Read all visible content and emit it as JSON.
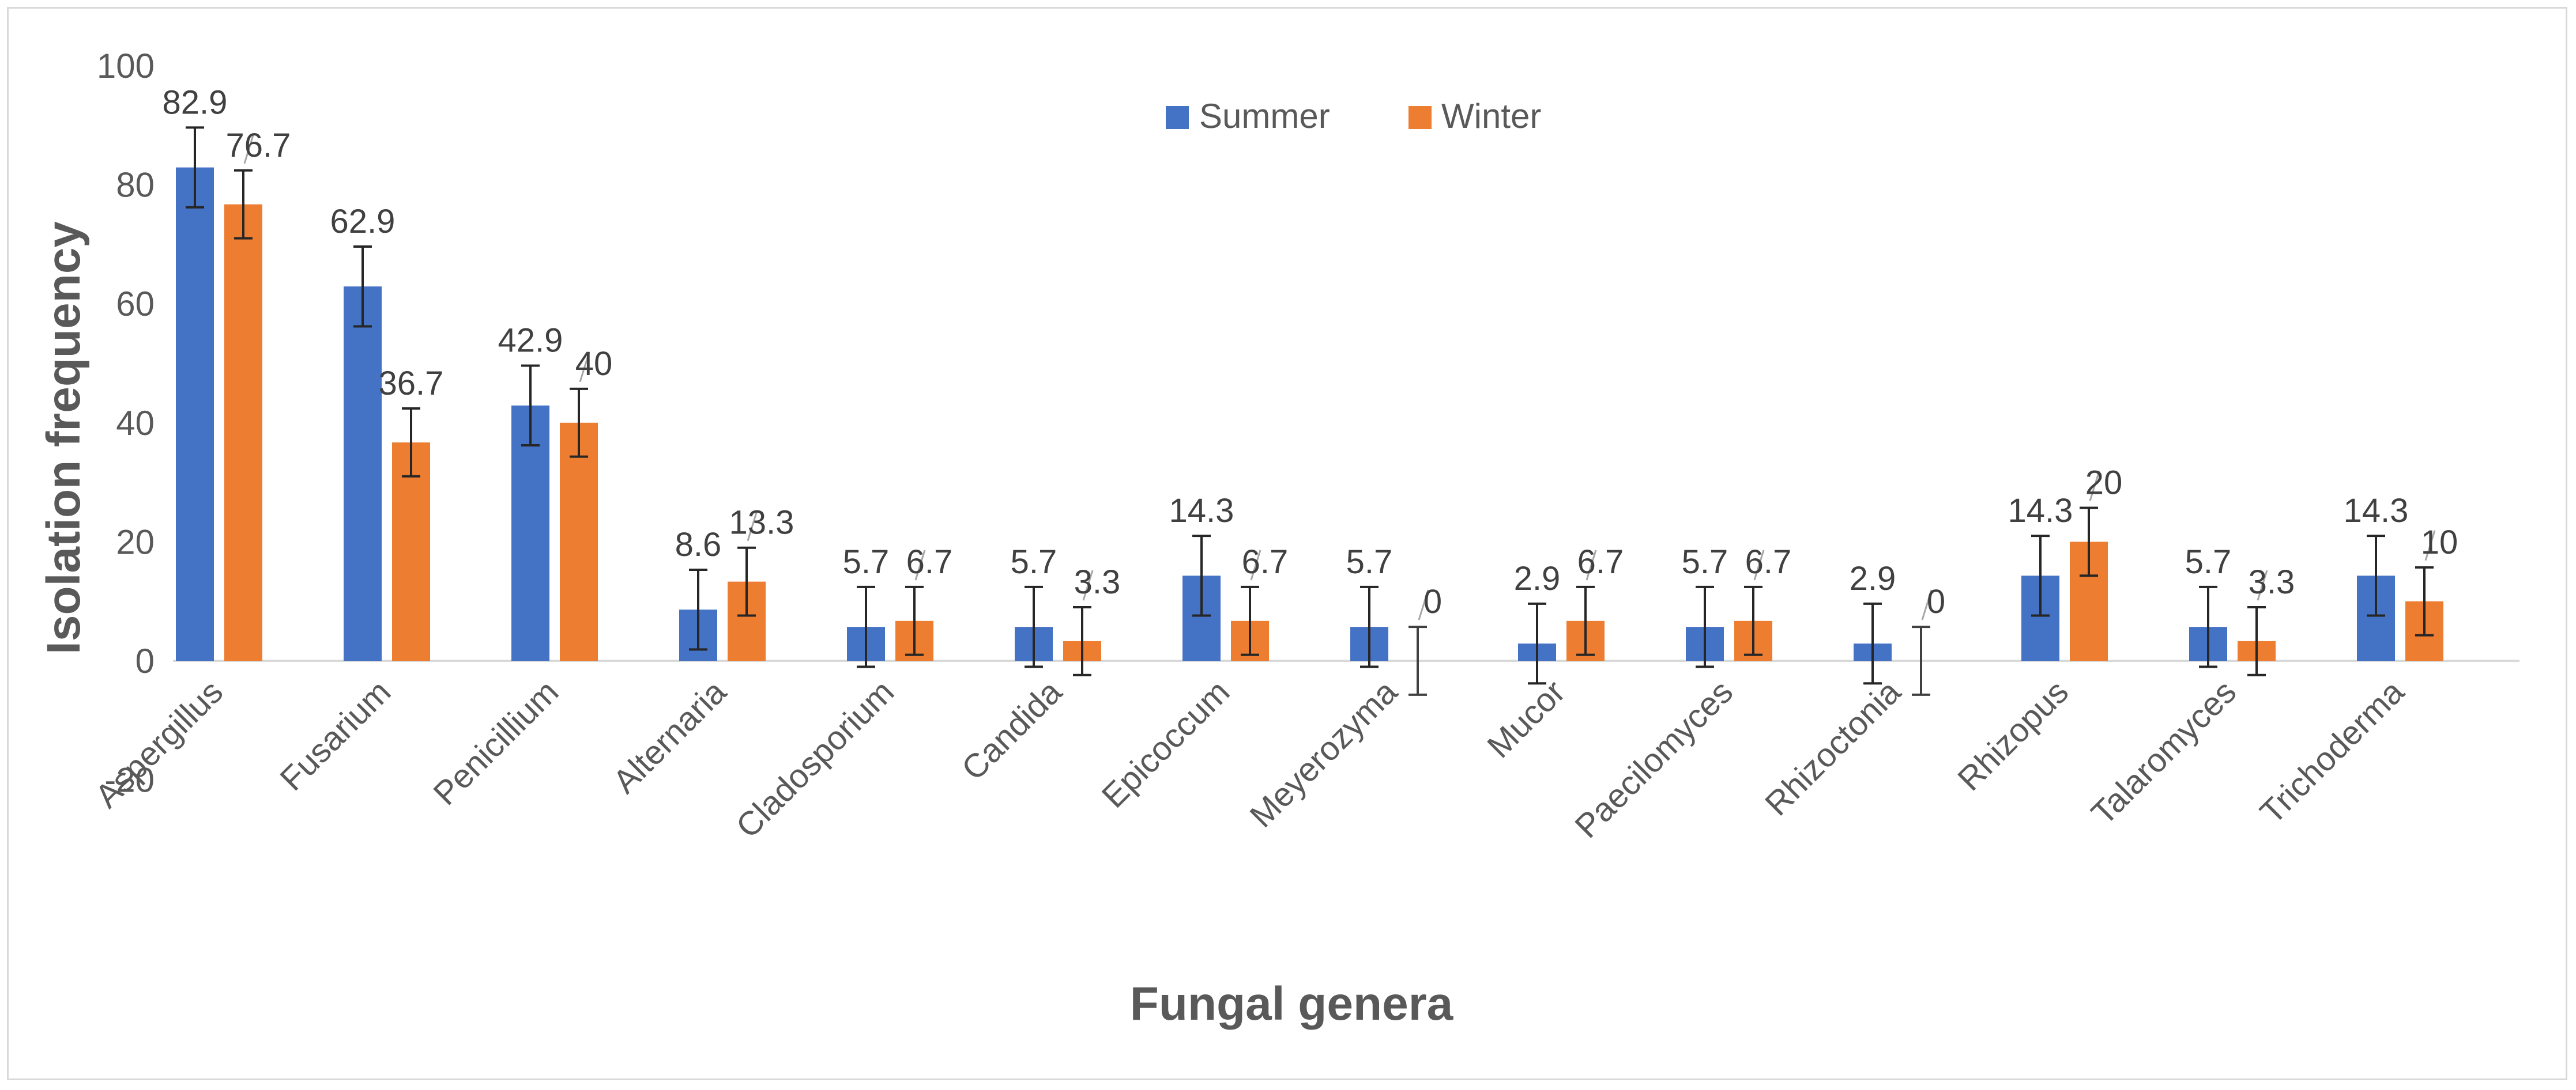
{
  "chart_data": {
    "type": "bar",
    "title": "",
    "xlabel": "Fungal genera",
    "ylabel": "Isolation frequency",
    "ylim": [
      -20,
      100
    ],
    "yticks": [
      "-20",
      "0",
      "20",
      "40",
      "60",
      "80",
      "100"
    ],
    "grid": false,
    "legend_position": "top-center",
    "categories": [
      "Aspergillus",
      "Fusarium",
      "Penicillium",
      "Alternaria",
      "Cladosporium",
      "Candida",
      "Epicoccum",
      "Meyerozyma",
      "Mucor",
      "Paecilomyces",
      "Rhizoctonia",
      "Rhizopus",
      "Talaromyces",
      "Trichoderma"
    ],
    "series": [
      {
        "name": "Summer",
        "color": "#4472c4",
        "values": [
          82.9,
          62.9,
          42.9,
          8.6,
          5.7,
          5.7,
          14.3,
          5.7,
          2.9,
          5.7,
          2.9,
          14.3,
          5.7,
          14.3
        ],
        "labels": [
          "82.9",
          "62.9",
          "42.9",
          "8.6",
          "5.7",
          "5.7",
          "14.3",
          "5.7",
          "2.9",
          "5.7",
          "2.9",
          "14.3",
          "5.7",
          "14.3"
        ],
        "error": [
          6.7,
          6.7,
          6.7,
          6.7,
          6.7,
          6.7,
          6.7,
          6.7,
          6.7,
          6.7,
          6.7,
          6.7,
          6.7,
          6.7
        ]
      },
      {
        "name": "Winter",
        "color": "#ed7d31",
        "values": [
          76.7,
          36.7,
          40,
          13.3,
          6.7,
          3.3,
          6.7,
          0,
          6.7,
          6.7,
          0,
          20,
          3.3,
          10
        ],
        "labels": [
          "76.7",
          "36.7",
          "40",
          "13.3",
          "6.7",
          "3.3",
          "6.7",
          "0",
          "6.7",
          "6.7",
          "0",
          "20",
          "3.3",
          "10"
        ],
        "error": [
          5.7,
          5.7,
          5.7,
          5.7,
          5.7,
          5.7,
          5.7,
          5.7,
          5.7,
          5.7,
          5.7,
          5.7,
          5.7,
          5.7
        ]
      }
    ]
  }
}
